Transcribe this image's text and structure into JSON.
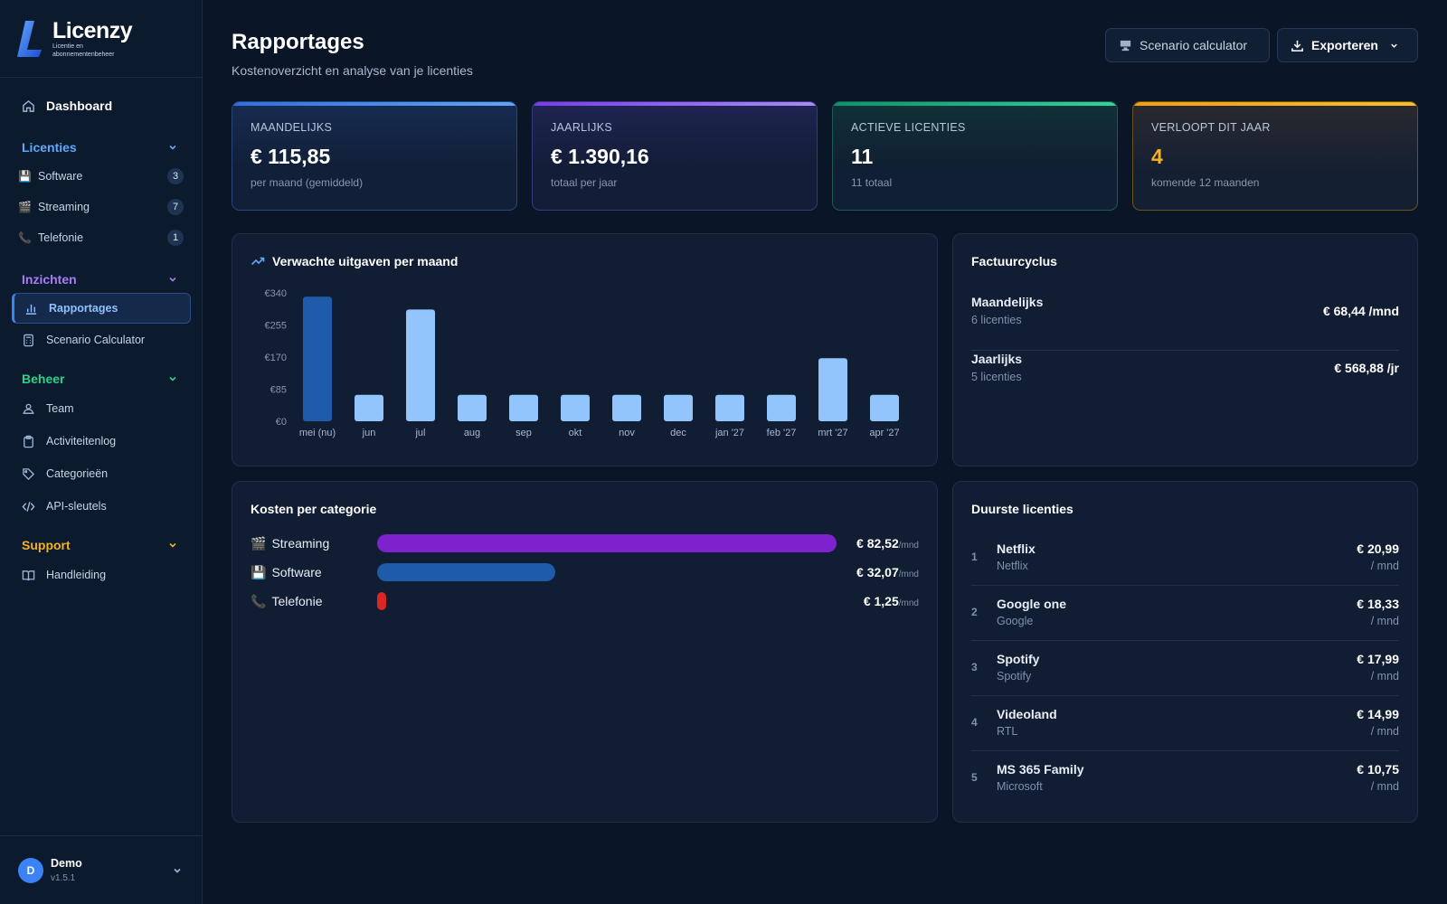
{
  "app": {
    "name": "Licenzy",
    "tagline": "Licentie en abonnementenbeheer"
  },
  "sidebar": {
    "dashboard": "Dashboard",
    "groups": {
      "licenties": {
        "label": "Licenties",
        "color": "#5fa8ff",
        "items": [
          {
            "emoji": "💾",
            "label": "Software",
            "count": "3"
          },
          {
            "emoji": "🎬",
            "label": "Streaming",
            "count": "7"
          },
          {
            "emoji": "📞",
            "label": "Telefonie",
            "count": "1"
          }
        ]
      },
      "inzichten": {
        "label": "Inzichten",
        "color": "#a97cf6",
        "items": [
          {
            "icon": "bar-chart-icon",
            "label": "Rapportages"
          },
          {
            "icon": "calculator-icon",
            "label": "Scenario Calculator"
          }
        ]
      },
      "beheer": {
        "label": "Beheer",
        "color": "#2fd08a",
        "items": [
          {
            "icon": "team-icon",
            "label": "Team"
          },
          {
            "icon": "clipboard-icon",
            "label": "Activiteitenlog"
          },
          {
            "icon": "tag-icon",
            "label": "Categorieën"
          },
          {
            "icon": "code-icon",
            "label": "API-sleutels"
          }
        ]
      },
      "support": {
        "label": "Support",
        "color": "#f5b120",
        "items": [
          {
            "icon": "book-icon",
            "label": "Handleiding"
          }
        ]
      }
    },
    "user": {
      "initial": "D",
      "name": "Demo",
      "version": "v1.5.1"
    }
  },
  "header": {
    "title": "Rapportages",
    "subtitle": "Kostenoverzicht en analyse van je licenties",
    "scenario_button": "Scenario calculator",
    "export_button": "Exporteren"
  },
  "stats": [
    {
      "label": "MAANDELIJKS",
      "value": "€ 115,85",
      "sub": "per maand (gemiddeld)",
      "accent": "#3b82f6"
    },
    {
      "label": "JAARLIJKS",
      "value": "€ 1.390,16",
      "sub": "totaal per jaar",
      "accent": "#8b5cf6"
    },
    {
      "label": "ACTIEVE LICENTIES",
      "value": "11",
      "sub": "11 totaal",
      "accent": "#10b981"
    },
    {
      "label": "VERLOOPT DIT JAAR",
      "value": "4",
      "sub": "komende 12 maanden",
      "accent": "#f59e0b"
    }
  ],
  "spend_panel": {
    "title": "Verwachte uitgaven per maand"
  },
  "chart_data": {
    "type": "bar",
    "title": "Verwachte uitgaven per maand",
    "categories": [
      "mei (nu)",
      "jun",
      "jul",
      "aug",
      "sep",
      "okt",
      "nov",
      "dec",
      "jan '27",
      "feb '27",
      "mrt '27",
      "apr '27"
    ],
    "values": [
      330,
      70,
      296,
      70,
      70,
      70,
      70,
      70,
      70,
      70,
      167,
      70
    ],
    "y_ticks": [
      "€0",
      "€85",
      "€170",
      "€255",
      "€340"
    ],
    "ylim": [
      0,
      340
    ],
    "highlight_index": 0,
    "colors": {
      "current": "#1e5ba8",
      "other": "#93c5fd"
    }
  },
  "cycle": {
    "title": "Factuurcyclus",
    "rows": [
      {
        "name": "Maandelijks",
        "count": "6 licenties",
        "amount": "€ 68,44 /mnd"
      },
      {
        "name": "Jaarlijks",
        "count": "5 licenties",
        "amount": "€ 568,88 /jr"
      }
    ]
  },
  "categories": {
    "title": "Kosten per categorie",
    "rows": [
      {
        "emoji": "🎬",
        "name": "Streaming",
        "amount": "€ 82,52",
        "unit": "/mnd",
        "value": 82.52,
        "color": "#7e22ce"
      },
      {
        "emoji": "💾",
        "name": "Software",
        "amount": "€ 32,07",
        "unit": "/mnd",
        "value": 32.07,
        "color": "#1e5ba8"
      },
      {
        "emoji": "📞",
        "name": "Telefonie",
        "amount": "€ 1,25",
        "unit": "/mnd",
        "value": 1.25,
        "color": "#dc2626"
      }
    ]
  },
  "top": {
    "title": "Duurste licenties",
    "rows": [
      {
        "rank": "1",
        "name": "Netflix",
        "vendor": "Netflix",
        "price": "€ 20,99",
        "unit": "/ mnd"
      },
      {
        "rank": "2",
        "name": "Google one",
        "vendor": "Google",
        "price": "€ 18,33",
        "unit": "/ mnd"
      },
      {
        "rank": "3",
        "name": "Spotify",
        "vendor": "Spotify",
        "price": "€ 17,99",
        "unit": "/ mnd"
      },
      {
        "rank": "4",
        "name": "Videoland",
        "vendor": "RTL",
        "price": "€ 14,99",
        "unit": "/ mnd"
      },
      {
        "rank": "5",
        "name": "MS 365 Family",
        "vendor": "Microsoft",
        "price": "€ 10,75",
        "unit": "/ mnd"
      }
    ]
  }
}
